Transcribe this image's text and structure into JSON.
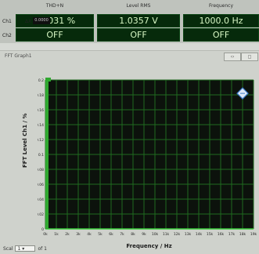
{
  "readouts": {
    "row_labels": [
      "Ch1",
      "Ch2"
    ],
    "columns": [
      {
        "header": "THD+N",
        "ch1": "0.0031 %",
        "ch2": "OFF"
      },
      {
        "header": "Level RMS",
        "ch1": "1.0357 V",
        "ch2": "OFF"
      },
      {
        "header": "Frequency",
        "ch1": "1000.0 Hz",
        "ch2": "OFF"
      }
    ]
  },
  "graph": {
    "title": "FFT Graph1",
    "window_buttons": [
      "‹›",
      "◻"
    ],
    "delta_label": "ΔX",
    "delta_value": "0.0000",
    "y_axis_label": "FFT Level Ch1 / %",
    "x_axis_label": "Frequency / Hz",
    "bottom": {
      "label": "Scal",
      "select_value": "1",
      "suffix": "of 1"
    }
  },
  "chart_data": {
    "type": "line",
    "title": "",
    "xlabel": "Frequency / Hz",
    "ylabel": "FFT Level Ch1 / %",
    "x_ticks": [
      "0k",
      "1k",
      "2k",
      "3k",
      "4k",
      "5k",
      "6k",
      "7k",
      "8k",
      "9k",
      "10k",
      "11k",
      "12k",
      "13k",
      "14k",
      "15k",
      "16k",
      "17k",
      "18k",
      "19k"
    ],
    "y_ticks": [
      "0",
      "0.02",
      "0.04",
      "0.06",
      "0.08",
      "0.1",
      "0.12",
      "0.14",
      "0.16",
      "0.18",
      "0.2"
    ],
    "xlim": [
      0,
      19000
    ],
    "ylim": [
      0,
      0.2
    ],
    "grid": true,
    "plot_background": "#0c120c",
    "grid_color": "#1f6b1f",
    "series": [
      {
        "x": [
          0,
          19000
        ],
        "y": [
          0,
          0
        ],
        "color": "#3ccf3c"
      }
    ]
  },
  "colors": {
    "readout_bg": "#062a0b",
    "readout_text": "#d8f7c4",
    "marker_color": "#3b79c6"
  }
}
